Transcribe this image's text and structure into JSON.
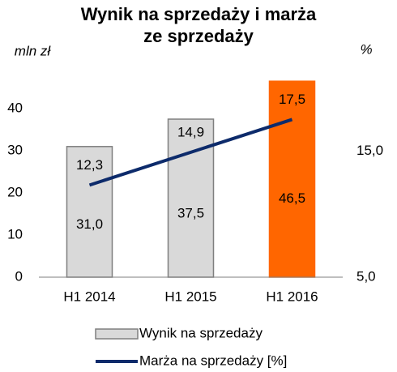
{
  "chart_data": {
    "type": "bar-line",
    "title": "Wynik na sprzedaży i marża ze sprzedaży",
    "ylabel": "mln zł",
    "y2label": "%",
    "categories": [
      "H1 2014",
      "H1 2015",
      "H1 2016"
    ],
    "series": [
      {
        "name": "Wynik na sprzedaży",
        "type": "bar",
        "color": "#d9d9d9",
        "edgecolor": "#7f7f7f",
        "colors": [
          "#d9d9d9",
          "#d9d9d9",
          "#ff6600"
        ],
        "values": [
          31.0,
          37.5,
          46.5
        ],
        "value_labels": [
          "31,0",
          "37,5",
          "46,5"
        ]
      },
      {
        "name": "Marża na sprzedaży [%]",
        "type": "line",
        "axis": "y2",
        "color": "#0d2b6b",
        "values": [
          12.3,
          14.9,
          17.5
        ],
        "value_labels": [
          "12,3",
          "14,9",
          "17,5"
        ]
      }
    ],
    "ylim": [
      0,
      47
    ],
    "yticks": [
      0,
      10,
      20,
      30,
      40
    ],
    "y2lim": [
      5,
      20.7
    ],
    "y2ticks": [
      {
        "value": 5,
        "label": "5,0"
      },
      {
        "value": 15,
        "label": "15,0"
      }
    ],
    "legend": "bottom"
  }
}
